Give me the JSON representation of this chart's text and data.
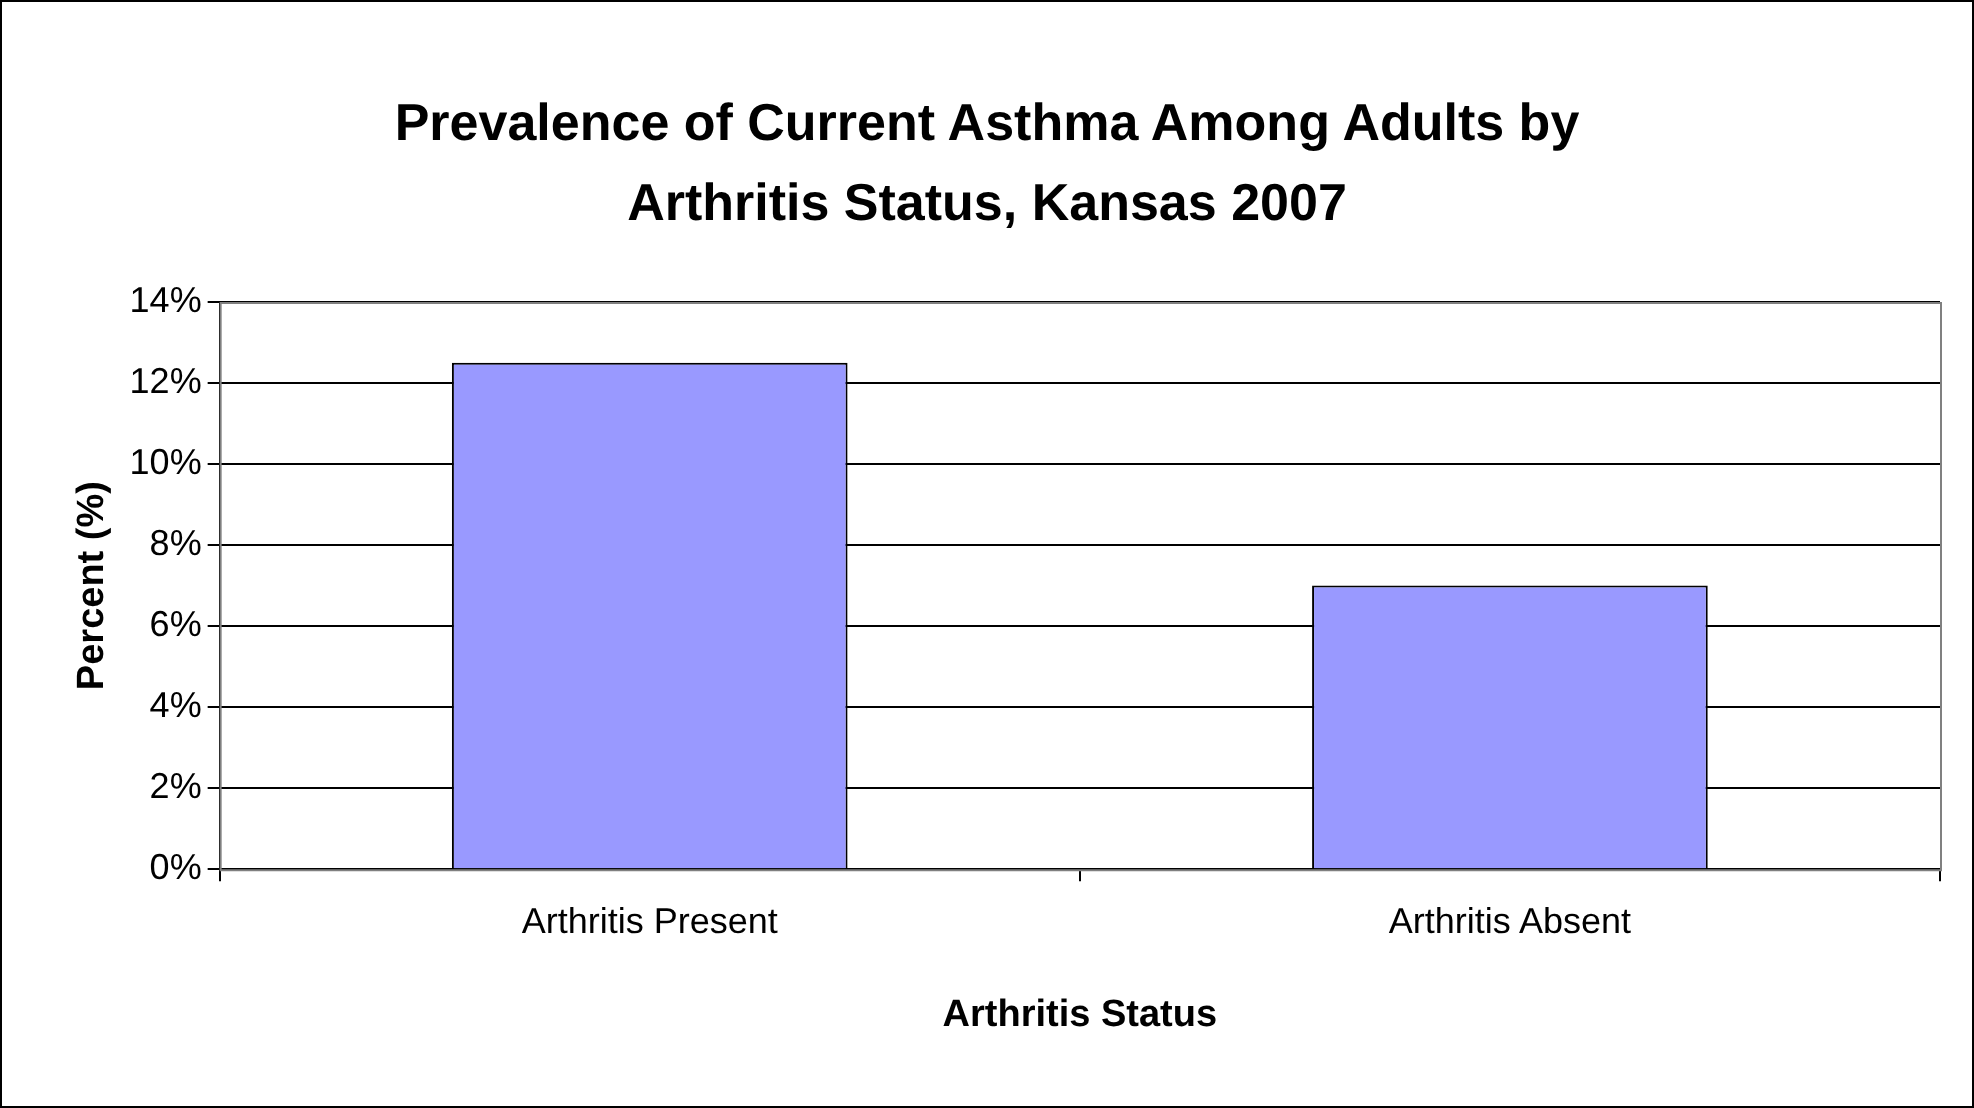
{
  "chart_data": {
    "type": "bar",
    "title": "Prevalence of Current Asthma Among Adults by Arthritis Status, Kansas 2007",
    "xlabel": "Arthritis Status",
    "ylabel": "Percent (%)",
    "categories": [
      "Arthritis Present",
      "Arthritis Absent"
    ],
    "values": [
      12.5,
      7.0
    ],
    "color": "#9999ff",
    "ylim": [
      0,
      14
    ],
    "yticks": [
      {
        "value": 0,
        "label": "0%"
      },
      {
        "value": 2,
        "label": "2%"
      },
      {
        "value": 4,
        "label": "4%"
      },
      {
        "value": 6,
        "label": "6%"
      },
      {
        "value": 8,
        "label": "8%"
      },
      {
        "value": 10,
        "label": "10%"
      },
      {
        "value": 12,
        "label": "12%"
      },
      {
        "value": 14,
        "label": "14%"
      }
    ],
    "grid": "y",
    "legend": false
  }
}
